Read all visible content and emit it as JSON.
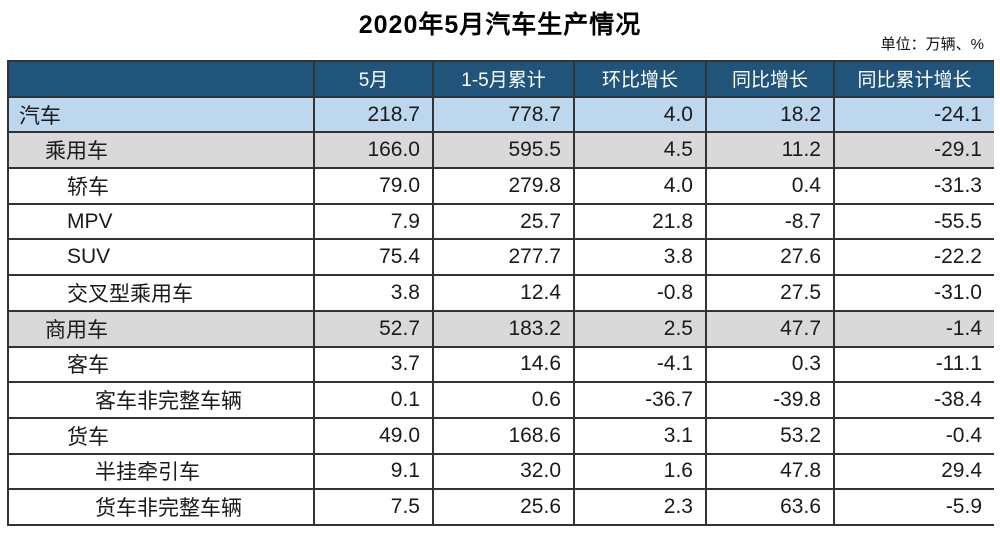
{
  "title": "2020年5月汽车生产情况",
  "unit_note": "单位：万辆、%",
  "colors": {
    "header_bg": "#20547A",
    "header_text": "#ffffff",
    "highlight_blue": "#BDD7EE",
    "highlight_gray": "#D9D9D9",
    "grid_border": "#333333"
  },
  "table": {
    "columns": [
      "",
      "5月",
      "1-5月累计",
      "环比增长",
      "同比增长",
      "同比累计增长"
    ],
    "rows": [
      {
        "label": "汽车",
        "values": [
          "218.7",
          "778.7",
          "4.0",
          "18.2",
          "-24.1"
        ]
      },
      {
        "label": "乘用车",
        "values": [
          "166.0",
          "595.5",
          "4.5",
          "11.2",
          "-29.1"
        ]
      },
      {
        "label": "轿车",
        "values": [
          "79.0",
          "279.8",
          "4.0",
          "0.4",
          "-31.3"
        ]
      },
      {
        "label": "MPV",
        "values": [
          "7.9",
          "25.7",
          "21.8",
          "-8.7",
          "-55.5"
        ]
      },
      {
        "label": "SUV",
        "values": [
          "75.4",
          "277.7",
          "3.8",
          "27.6",
          "-22.2"
        ]
      },
      {
        "label": "交叉型乘用车",
        "values": [
          "3.8",
          "12.4",
          "-0.8",
          "27.5",
          "-31.0"
        ]
      },
      {
        "label": "商用车",
        "values": [
          "52.7",
          "183.2",
          "2.5",
          "47.7",
          "-1.4"
        ]
      },
      {
        "label": "客车",
        "values": [
          "3.7",
          "14.6",
          "-4.1",
          "0.3",
          "-11.1"
        ]
      },
      {
        "label": "客车非完整车辆",
        "values": [
          "0.1",
          "0.6",
          "-36.7",
          "-39.8",
          "-38.4"
        ]
      },
      {
        "label": "货车",
        "values": [
          "49.0",
          "168.6",
          "3.1",
          "53.2",
          "-0.4"
        ]
      },
      {
        "label": "半挂牵引车",
        "values": [
          "9.1",
          "32.0",
          "1.6",
          "47.8",
          "29.4"
        ]
      },
      {
        "label": "货车非完整车辆",
        "values": [
          "7.5",
          "25.6",
          "2.3",
          "63.6",
          "-5.9"
        ]
      }
    ]
  },
  "chart_data": {
    "type": "table",
    "title": "2020年5月汽车生产情况",
    "unit": "万辆、%",
    "columns": [
      "",
      "5月",
      "1-5月累计",
      "环比增长",
      "同比增长",
      "同比累计增长"
    ],
    "rows": [
      {
        "category": "汽车",
        "indent_level": 0,
        "may": 218.7,
        "jan_may_cumulative": 778.7,
        "mom_growth": 4.0,
        "yoy_growth": 18.2,
        "yoy_cumulative_growth": -24.1
      },
      {
        "category": "乘用车",
        "indent_level": 1,
        "may": 166.0,
        "jan_may_cumulative": 595.5,
        "mom_growth": 4.5,
        "yoy_growth": 11.2,
        "yoy_cumulative_growth": -29.1
      },
      {
        "category": "轿车",
        "indent_level": 2,
        "may": 79.0,
        "jan_may_cumulative": 279.8,
        "mom_growth": 4.0,
        "yoy_growth": 0.4,
        "yoy_cumulative_growth": -31.3
      },
      {
        "category": "MPV",
        "indent_level": 2,
        "may": 7.9,
        "jan_may_cumulative": 25.7,
        "mom_growth": 21.8,
        "yoy_growth": -8.7,
        "yoy_cumulative_growth": -55.5
      },
      {
        "category": "SUV",
        "indent_level": 2,
        "may": 75.4,
        "jan_may_cumulative": 277.7,
        "mom_growth": 3.8,
        "yoy_growth": 27.6,
        "yoy_cumulative_growth": -22.2
      },
      {
        "category": "交叉型乘用车",
        "indent_level": 2,
        "may": 3.8,
        "jan_may_cumulative": 12.4,
        "mom_growth": -0.8,
        "yoy_growth": 27.5,
        "yoy_cumulative_growth": -31.0
      },
      {
        "category": "商用车",
        "indent_level": 1,
        "may": 52.7,
        "jan_may_cumulative": 183.2,
        "mom_growth": 2.5,
        "yoy_growth": 47.7,
        "yoy_cumulative_growth": -1.4
      },
      {
        "category": "客车",
        "indent_level": 2,
        "may": 3.7,
        "jan_may_cumulative": 14.6,
        "mom_growth": -4.1,
        "yoy_growth": 0.3,
        "yoy_cumulative_growth": -11.1
      },
      {
        "category": "客车非完整车辆",
        "indent_level": 3,
        "may": 0.1,
        "jan_may_cumulative": 0.6,
        "mom_growth": -36.7,
        "yoy_growth": -39.8,
        "yoy_cumulative_growth": -38.4
      },
      {
        "category": "货车",
        "indent_level": 2,
        "may": 49.0,
        "jan_may_cumulative": 168.6,
        "mom_growth": 3.1,
        "yoy_growth": 53.2,
        "yoy_cumulative_growth": -0.4
      },
      {
        "category": "半挂牵引车",
        "indent_level": 3,
        "may": 9.1,
        "jan_may_cumulative": 32.0,
        "mom_growth": 1.6,
        "yoy_growth": 47.8,
        "yoy_cumulative_growth": 29.4
      },
      {
        "category": "货车非完整车辆",
        "indent_level": 3,
        "may": 7.5,
        "jan_may_cumulative": 25.6,
        "mom_growth": 2.3,
        "yoy_growth": 63.6,
        "yoy_cumulative_growth": -5.9
      }
    ]
  }
}
